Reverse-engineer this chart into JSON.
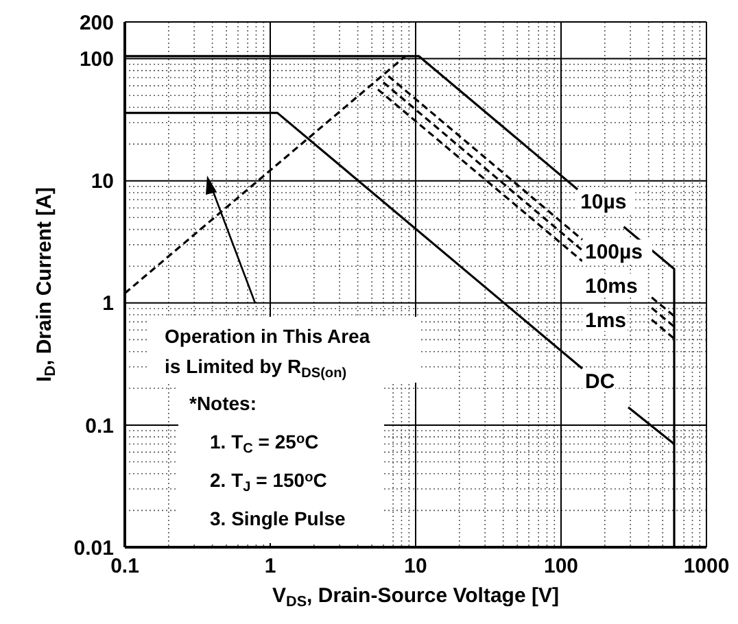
{
  "chart_data": {
    "type": "line",
    "xlabel": "V$_{DS}$, Drain-Source Voltage [V]",
    "ylabel": "I$_{D}$, Drain Current [A]",
    "log": "xy",
    "grid": true,
    "xlim": [
      0.1,
      1000
    ],
    "xticks": [
      0.1,
      1,
      10,
      100,
      1000
    ],
    "ylim": [
      0.01,
      200
    ],
    "yticks": [
      0.01,
      0.1,
      1,
      10,
      100,
      200
    ],
    "series": [
      {
        "name": "10µs",
        "color": "#000000",
        "line_style": "solid",
        "x": [
          0.1,
          10.5,
          130,
          200,
          270,
          600,
          600
        ],
        "values": [
          105,
          105,
          8.5,
          null,
          4.2,
          1.9,
          0.01
        ]
      },
      {
        "name": "100µs",
        "color": "#000000",
        "line_style": "dashed",
        "x": [
          6.5,
          140,
          200,
          420,
          600
        ],
        "values": [
          72,
          3.3,
          null,
          1.11,
          0.78
        ]
      },
      {
        "name": "10ms",
        "color": "#000000",
        "line_style": "dashed",
        "x": [
          6,
          140,
          200,
          420,
          600
        ],
        "values": [
          64,
          2.7,
          null,
          0.91,
          0.64
        ]
      },
      {
        "name": "1ms",
        "color": "#000000",
        "line_style": "dashed",
        "x": [
          5.5,
          140,
          200,
          420,
          600
        ],
        "values": [
          56,
          2.2,
          null,
          0.73,
          0.51
        ]
      },
      {
        "name": "DC",
        "color": "#000000",
        "line_style": "solid",
        "x": [
          0.1,
          1.12,
          140,
          200,
          290,
          600
        ],
        "values": [
          36,
          36,
          0.29,
          null,
          0.14,
          0.07
        ]
      },
      {
        "color": "#000000",
        "line_style": "dashed",
        "x": [
          0.1,
          8.5
        ],
        "values": [
          1.2,
          105
        ]
      }
    ],
    "annotations": [
      "Operation in This Area\nis Limited by R$_{DS(on)}$",
      "*Notes:",
      "1. T$_{C}$ = 25$^{o}$C",
      "2. T$_{J}$ = 150$^{o}$C",
      "3. Single Pulse"
    ]
  }
}
